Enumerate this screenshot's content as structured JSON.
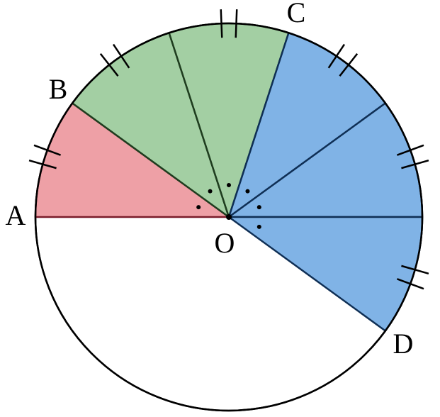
{
  "labels": {
    "A": "A",
    "B": "B",
    "C": "C",
    "D": "D",
    "O": "O"
  }
}
